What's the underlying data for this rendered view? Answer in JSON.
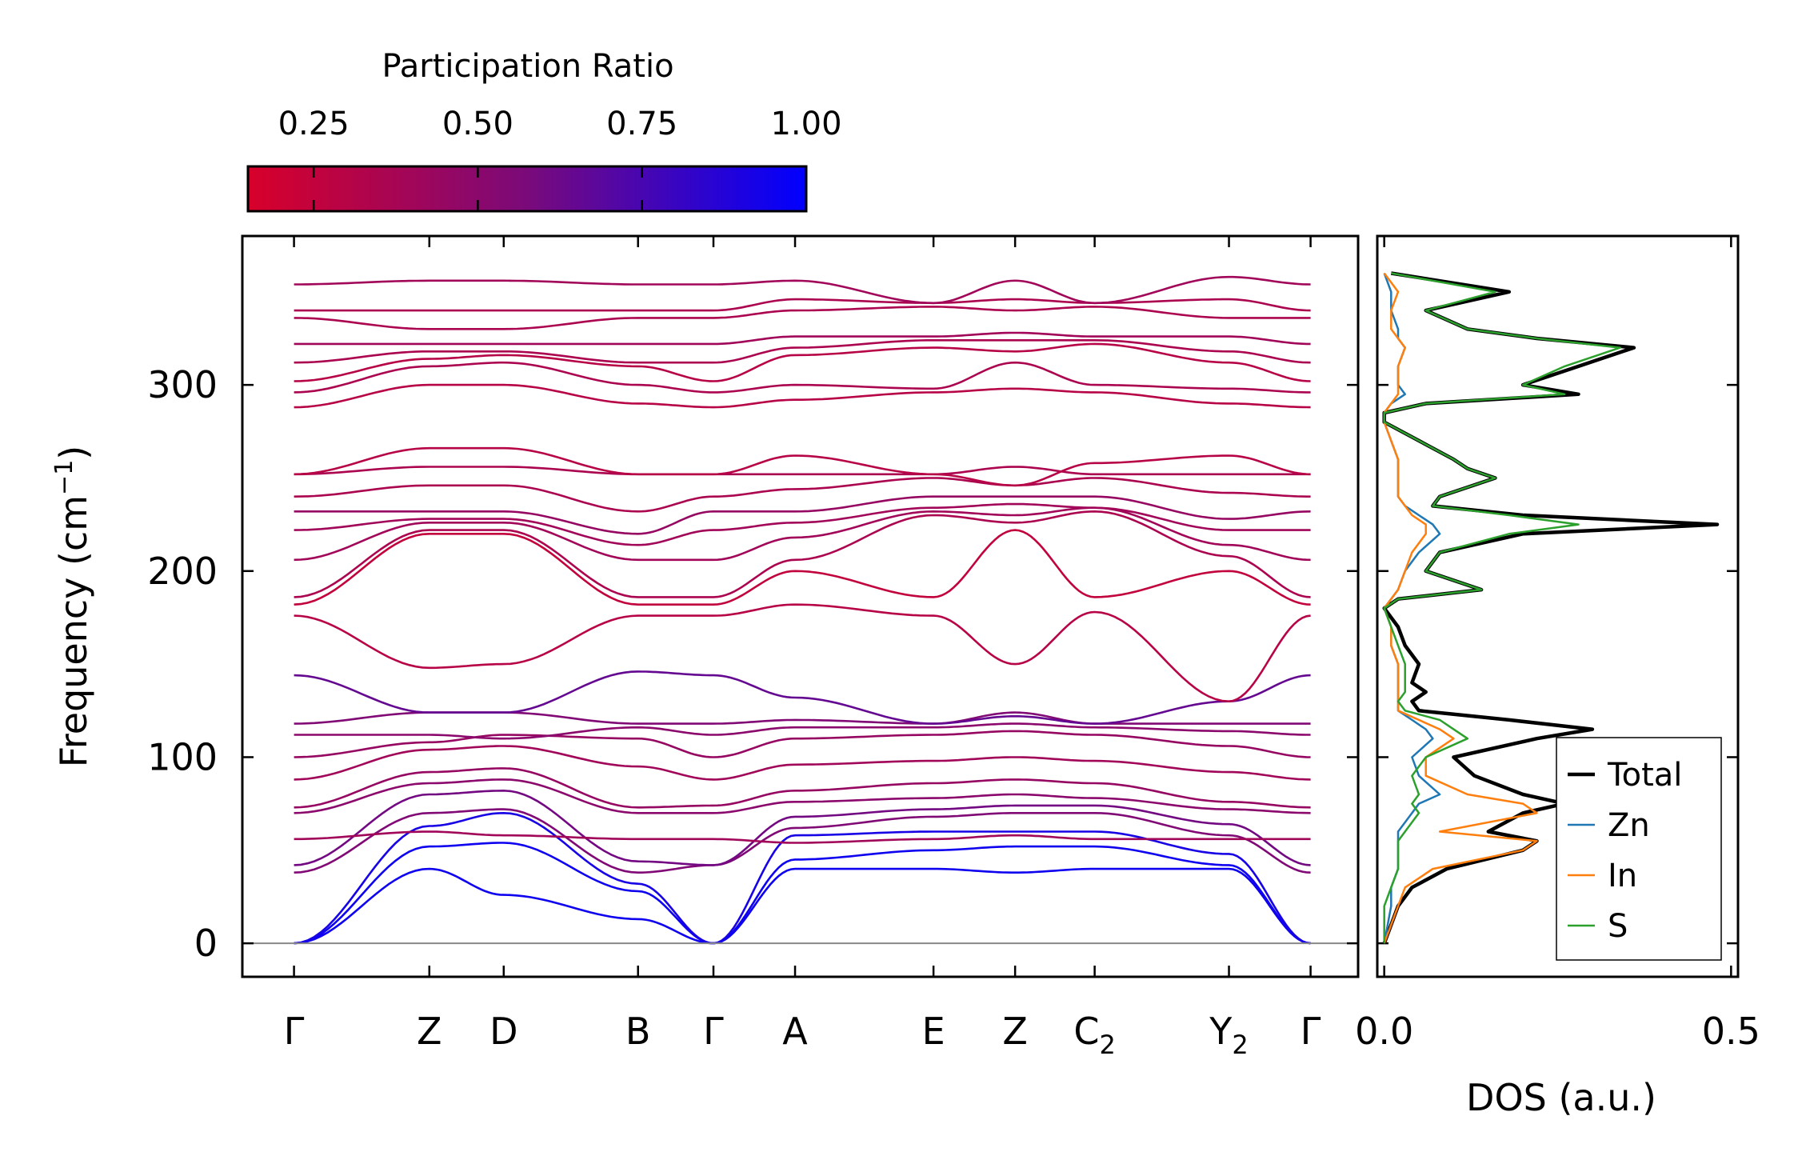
{
  "chart_data": [
    {
      "type": "line",
      "name": "phonon-band-structure",
      "title": "",
      "xlabel": "",
      "ylabel": "Frequency (cm",
      "ylabel_sup": "−1",
      "ylabel_end": ")",
      "ylim": [
        -18,
        380
      ],
      "yticks": [
        0,
        100,
        200,
        300
      ],
      "kpoints": [
        {
          "label": "Γ",
          "sub": "",
          "x": 0.0
        },
        {
          "label": "Z",
          "sub": "",
          "x": 1.31
        },
        {
          "label": "D",
          "sub": "",
          "x": 2.03
        },
        {
          "label": "B",
          "sub": "",
          "x": 3.33
        },
        {
          "label": "Γ",
          "sub": "",
          "x": 4.06
        },
        {
          "label": "A",
          "sub": "",
          "x": 4.85
        },
        {
          "label": "E",
          "sub": "",
          "x": 6.19
        },
        {
          "label": "Z",
          "sub": "",
          "x": 6.98
        },
        {
          "label": "C",
          "sub": "2",
          "x": 7.75
        },
        {
          "label": "Y",
          "sub": "2",
          "x": 9.05
        },
        {
          "label": "Γ",
          "sub": "",
          "x": 9.84
        }
      ],
      "xlim": [
        -0.5,
        10.3
      ],
      "series": [
        {
          "name": "b1",
          "pr": 0.95,
          "values": [
            0,
            40,
            26,
            13,
            0,
            40,
            40,
            38,
            40,
            40,
            0
          ]
        },
        {
          "name": "b2",
          "pr": 0.95,
          "values": [
            0,
            52,
            54,
            28,
            0,
            45,
            50,
            52,
            52,
            42,
            0
          ]
        },
        {
          "name": "b3",
          "pr": 0.92,
          "values": [
            0,
            63,
            70,
            32,
            0,
            58,
            60,
            60,
            60,
            48,
            0
          ]
        },
        {
          "name": "b4",
          "pr": 0.55,
          "values": [
            38,
            70,
            72,
            38,
            42,
            62,
            68,
            70,
            70,
            58,
            38
          ]
        },
        {
          "name": "b5",
          "pr": 0.6,
          "values": [
            42,
            80,
            82,
            44,
            42,
            68,
            72,
            74,
            74,
            64,
            42
          ]
        },
        {
          "name": "b6",
          "pr": 0.4,
          "values": [
            56,
            60,
            58,
            56,
            56,
            54,
            56,
            58,
            56,
            56,
            56
          ]
        },
        {
          "name": "b7",
          "pr": 0.5,
          "values": [
            70,
            86,
            88,
            70,
            70,
            76,
            78,
            80,
            78,
            72,
            70
          ]
        },
        {
          "name": "b8",
          "pr": 0.45,
          "values": [
            73,
            92,
            94,
            73,
            74,
            82,
            86,
            88,
            86,
            76,
            73
          ]
        },
        {
          "name": "b9",
          "pr": 0.4,
          "values": [
            88,
            104,
            106,
            95,
            88,
            96,
            98,
            100,
            98,
            92,
            88
          ]
        },
        {
          "name": "b10",
          "pr": 0.45,
          "values": [
            100,
            108,
            112,
            110,
            100,
            110,
            112,
            114,
            112,
            106,
            100
          ]
        },
        {
          "name": "b11",
          "pr": 0.5,
          "values": [
            112,
            112,
            110,
            116,
            112,
            116,
            116,
            118,
            116,
            114,
            112
          ]
        },
        {
          "name": "b12",
          "pr": 0.55,
          "values": [
            118,
            124,
            124,
            118,
            118,
            120,
            118,
            124,
            118,
            118,
            118
          ]
        },
        {
          "name": "b13",
          "pr": 0.65,
          "values": [
            144,
            124,
            124,
            146,
            144,
            132,
            118,
            122,
            118,
            130,
            144
          ]
        },
        {
          "name": "b14",
          "pr": 0.3,
          "values": [
            176,
            148,
            150,
            176,
            176,
            182,
            176,
            150,
            178,
            130,
            176
          ]
        },
        {
          "name": "b15",
          "pr": 0.25,
          "values": [
            182,
            220,
            220,
            182,
            182,
            200,
            186,
            222,
            186,
            200,
            182
          ]
        },
        {
          "name": "b16",
          "pr": 0.35,
          "values": [
            186,
            222,
            222,
            186,
            186,
            206,
            230,
            226,
            232,
            208,
            186
          ]
        },
        {
          "name": "b17",
          "pr": 0.4,
          "values": [
            206,
            226,
            226,
            206,
            206,
            218,
            232,
            230,
            234,
            214,
            206
          ]
        },
        {
          "name": "b18",
          "pr": 0.4,
          "values": [
            222,
            228,
            228,
            214,
            222,
            226,
            234,
            236,
            234,
            222,
            222
          ]
        },
        {
          "name": "b19",
          "pr": 0.45,
          "values": [
            232,
            232,
            232,
            220,
            232,
            232,
            240,
            240,
            240,
            228,
            232
          ]
        },
        {
          "name": "b20",
          "pr": 0.35,
          "values": [
            240,
            246,
            246,
            232,
            240,
            244,
            250,
            246,
            250,
            242,
            240
          ]
        },
        {
          "name": "b21",
          "pr": 0.35,
          "values": [
            252,
            256,
            256,
            252,
            252,
            252,
            252,
            256,
            252,
            252,
            252
          ]
        },
        {
          "name": "b22",
          "pr": 0.3,
          "values": [
            252,
            266,
            266,
            252,
            252,
            262,
            252,
            246,
            258,
            262,
            252
          ]
        },
        {
          "name": "b23",
          "pr": 0.3,
          "values": [
            288,
            300,
            300,
            290,
            288,
            292,
            296,
            298,
            296,
            290,
            288
          ]
        },
        {
          "name": "b24",
          "pr": 0.35,
          "values": [
            296,
            310,
            312,
            300,
            296,
            300,
            298,
            312,
            300,
            298,
            296
          ]
        },
        {
          "name": "b25",
          "pr": 0.3,
          "values": [
            302,
            314,
            316,
            310,
            302,
            316,
            320,
            318,
            322,
            312,
            302
          ]
        },
        {
          "name": "b26",
          "pr": 0.35,
          "values": [
            312,
            318,
            318,
            312,
            312,
            320,
            324,
            324,
            324,
            318,
            312
          ]
        },
        {
          "name": "b27",
          "pr": 0.4,
          "values": [
            322,
            322,
            322,
            322,
            322,
            326,
            326,
            328,
            326,
            326,
            322
          ]
        },
        {
          "name": "b28",
          "pr": 0.35,
          "values": [
            336,
            330,
            330,
            336,
            336,
            340,
            342,
            340,
            342,
            336,
            336
          ]
        },
        {
          "name": "b29",
          "pr": 0.35,
          "values": [
            340,
            340,
            340,
            340,
            340,
            346,
            344,
            346,
            344,
            346,
            340
          ]
        },
        {
          "name": "b30",
          "pr": 0.4,
          "values": [
            354,
            356,
            356,
            354,
            354,
            356,
            344,
            356,
            344,
            358,
            354
          ]
        }
      ]
    },
    {
      "type": "line",
      "name": "phonon-dos",
      "title": "",
      "xlabel": "DOS (a.u.)",
      "ylabel": "",
      "xlim": [
        -0.01,
        0.51
      ],
      "xticks": [
        "0.0",
        "0.5"
      ],
      "xtick_values": [
        0.0,
        0.5
      ],
      "ylim": [
        -18,
        380
      ],
      "legend": {
        "location": "lower-right",
        "entries": [
          "Total",
          "Zn",
          "In",
          "S"
        ]
      },
      "frequency": [
        0,
        20,
        30,
        40,
        50,
        55,
        60,
        70,
        75,
        80,
        90,
        100,
        110,
        115,
        120,
        125,
        130,
        135,
        140,
        150,
        160,
        170,
        180,
        185,
        190,
        200,
        210,
        220,
        225,
        230,
        235,
        240,
        250,
        255,
        260,
        270,
        280,
        285,
        290,
        295,
        300,
        310,
        320,
        325,
        330,
        340,
        350,
        360
      ],
      "series": [
        {
          "name": "Total",
          "color": "#000000",
          "width": 4.5,
          "values": [
            0,
            0.02,
            0.04,
            0.09,
            0.2,
            0.22,
            0.15,
            0.2,
            0.26,
            0.2,
            0.13,
            0.1,
            0.22,
            0.3,
            0.18,
            0.05,
            0.04,
            0.06,
            0.04,
            0.05,
            0.03,
            0.02,
            0.0,
            0.02,
            0.14,
            0.06,
            0.08,
            0.2,
            0.48,
            0.2,
            0.07,
            0.08,
            0.16,
            0.12,
            0.1,
            0.05,
            0.0,
            0.0,
            0.06,
            0.28,
            0.2,
            0.28,
            0.36,
            0.22,
            0.12,
            0.06,
            0.18,
            0.01
          ]
        },
        {
          "name": "Zn",
          "color": "#1f77b4",
          "width": 2.5,
          "values": [
            0,
            0.01,
            0.01,
            0.02,
            0.02,
            0.02,
            0.02,
            0.04,
            0.05,
            0.08,
            0.05,
            0.04,
            0.07,
            0.06,
            0.04,
            0.02,
            0.02,
            0.02,
            0.02,
            0.02,
            0.01,
            0.01,
            0.0,
            0.01,
            0.02,
            0.03,
            0.05,
            0.08,
            0.07,
            0.05,
            0.03,
            0.02,
            0.02,
            0.02,
            0.02,
            0.01,
            0.0,
            0.0,
            0.01,
            0.03,
            0.02,
            0.02,
            0.03,
            0.02,
            0.02,
            0.01,
            0.01,
            0.0
          ]
        },
        {
          "name": "In",
          "color": "#ff7f0e",
          "width": 2.5,
          "values": [
            0,
            0.02,
            0.03,
            0.07,
            0.2,
            0.22,
            0.08,
            0.22,
            0.2,
            0.12,
            0.06,
            0.06,
            0.1,
            0.08,
            0.05,
            0.02,
            0.02,
            0.02,
            0.02,
            0.02,
            0.01,
            0.01,
            0.0,
            0.01,
            0.02,
            0.03,
            0.04,
            0.06,
            0.06,
            0.04,
            0.03,
            0.02,
            0.02,
            0.02,
            0.02,
            0.01,
            0.0,
            0.0,
            0.01,
            0.02,
            0.02,
            0.02,
            0.03,
            0.02,
            0.01,
            0.01,
            0.02,
            0.0
          ]
        },
        {
          "name": "S",
          "color": "#2ca02c",
          "width": 2.5,
          "values": [
            0,
            0.0,
            0.01,
            0.02,
            0.02,
            0.02,
            0.03,
            0.05,
            0.04,
            0.05,
            0.04,
            0.06,
            0.12,
            0.1,
            0.08,
            0.03,
            0.02,
            0.03,
            0.03,
            0.03,
            0.02,
            0.01,
            0.0,
            0.02,
            0.14,
            0.06,
            0.08,
            0.18,
            0.28,
            0.18,
            0.07,
            0.08,
            0.16,
            0.12,
            0.1,
            0.05,
            0.0,
            0.0,
            0.06,
            0.26,
            0.2,
            0.26,
            0.34,
            0.22,
            0.12,
            0.06,
            0.16,
            0.01
          ]
        }
      ]
    }
  ],
  "colorbar": {
    "title": "Participation Ratio",
    "min": 0.15,
    "max": 1.0,
    "ticks": [
      "0.25",
      "0.50",
      "0.75",
      "1.00"
    ],
    "tick_values": [
      0.25,
      0.5,
      0.75,
      1.0
    ],
    "color_low": "#d8002a",
    "color_mid": "#7a0a7a",
    "color_high": "#0000ff"
  }
}
